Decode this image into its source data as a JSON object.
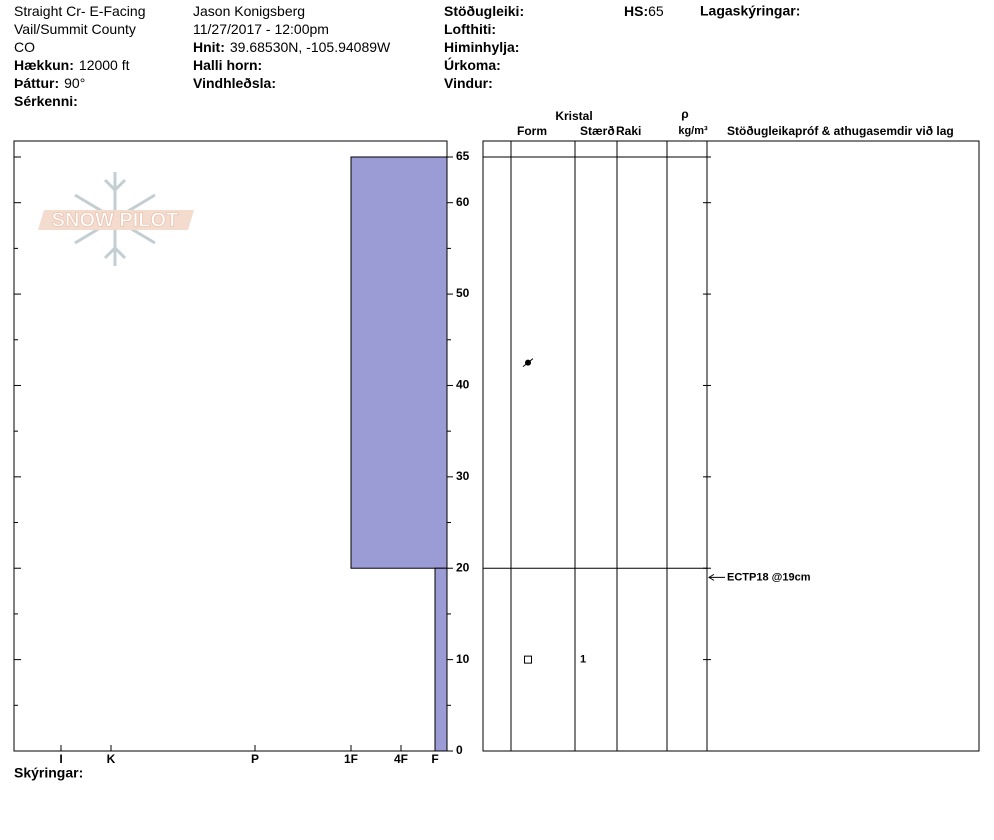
{
  "header": {
    "columns": [
      [
        {
          "text": "Straight Cr- E-Facing"
        },
        {
          "text": "Vail/Summit County"
        },
        {
          "text": "CO"
        },
        {
          "label": "Hækkun:",
          "value": "12000 ft"
        },
        {
          "label": "Þáttur:",
          "value": "90°"
        },
        {
          "label": "Sérkenni:"
        }
      ],
      [
        {
          "text": "Jason Konigsberg"
        },
        {
          "text": "11/27/2017 - 12:00pm"
        },
        {
          "label": "Hnit:",
          "value": "39.68530N, -105.94089W"
        },
        {
          "label": "Halli horn:"
        },
        {
          "label": "Vindhleðsla:"
        }
      ],
      [
        {
          "label": "Stöðugleiki:"
        },
        {
          "label": "Lofthiti:"
        },
        {
          "label": "Himinhylja:"
        },
        {
          "label": "Úrkoma:"
        },
        {
          "label": "Vindur:"
        }
      ]
    ],
    "hs": {
      "label": "HS:",
      "value": 65
    },
    "layer_notes": "Lagaskýringar:"
  },
  "logo": "SNOW PILOT",
  "chart_data": {
    "type": "snow-profile",
    "ylim": [
      0,
      66.75
    ],
    "yticks": [
      0,
      10,
      20,
      30,
      40,
      50,
      60,
      65
    ],
    "minor_yticks": [
      5,
      15,
      25,
      35,
      45,
      55
    ],
    "xticks": [
      {
        "value": 6,
        "label": "I"
      },
      {
        "value": 5,
        "label": "K"
      },
      {
        "value": 4,
        "label": "P"
      },
      {
        "value": 3,
        "label": "1F"
      },
      {
        "value": 2,
        "label": "4F"
      },
      {
        "value": 1,
        "label": "F"
      }
    ],
    "color": "#9b9bd6",
    "layers": [
      {
        "top": 65,
        "bottom": 20,
        "hardness": 3,
        "form": "DF"
      },
      {
        "top": 20,
        "bottom": 0,
        "hardness": 1,
        "form": "FC",
        "size": 1
      }
    ],
    "columns": {
      "crystal": "Kristal",
      "form": "Form",
      "size": "Stærð",
      "moisture": "Raki",
      "density_symbol": "ρ",
      "density_unit": "kg/m³",
      "comments": "Stöðugleikapróf & athugasemdir við lag"
    },
    "tests": [
      {
        "label": "ECTP18 @19cm",
        "depth": 19
      }
    ]
  },
  "footer": "Skýringar:"
}
